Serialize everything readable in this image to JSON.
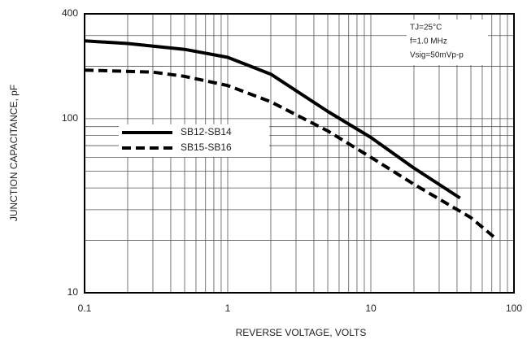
{
  "chart_data": {
    "type": "line",
    "xlabel": "REVERSE VOLTAGE, VOLTS",
    "ylabel": "JUNCTION CAPACITANCE, pF",
    "annotations": [
      "TJ=25°C",
      "f=1.0 MHz",
      "Vsig=50mVp-p"
    ],
    "xscale": "log",
    "yscale": "log",
    "grid": true,
    "minor_grid": true,
    "legend": "left",
    "xlim": [
      0.1,
      100
    ],
    "xticks": [
      0.1,
      1,
      10,
      100
    ],
    "ylim": [
      10,
      400
    ],
    "yticks": [
      10,
      100,
      400
    ],
    "series": [
      {
        "name": "SB12-SB14",
        "color": "#000000",
        "dash": false,
        "x": [
          0.1,
          0.2,
          0.5,
          1,
          2,
          5,
          10,
          20,
          42
        ],
        "values": [
          280,
          270,
          250,
          225,
          180,
          110,
          78,
          52,
          35
        ]
      },
      {
        "name": "SB15-SB16",
        "color": "#000000",
        "dash": true,
        "x": [
          0.1,
          0.3,
          0.5,
          1,
          2,
          5,
          10,
          20,
          50,
          72
        ],
        "values": [
          190,
          185,
          175,
          155,
          125,
          85,
          60,
          42,
          27,
          21
        ]
      }
    ]
  }
}
